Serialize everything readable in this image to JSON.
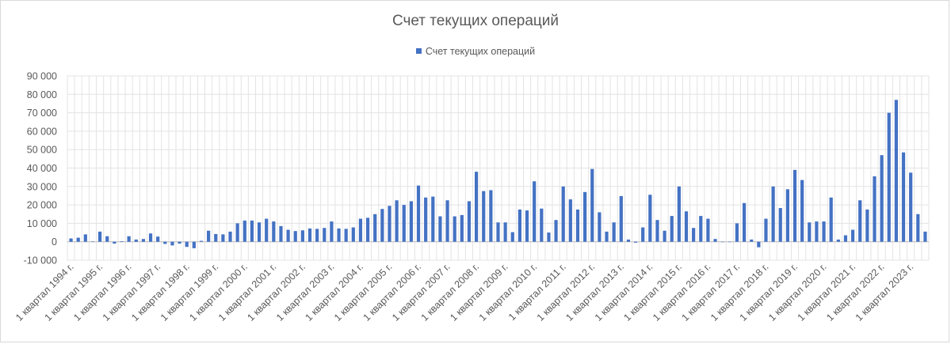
{
  "chart_data": {
    "type": "bar",
    "title": "Счет текущих операций",
    "xlabel": "",
    "ylabel": "",
    "legend": "top",
    "grid": true,
    "ylim": [
      -10000,
      90000
    ],
    "yticks": [
      "-10 000",
      "0",
      "10 000",
      "20 000",
      "30 000",
      "40 000",
      "50 000",
      "60 000",
      "70 000",
      "80 000",
      "90 000"
    ],
    "x_tick_labels": [
      "1 квартал 1994 г.",
      "1 квартал 1995 г.",
      "1 квартал 1996 г.",
      "1 квартал 1997 г.",
      "1 квартал 1998 г.",
      "1 квартал 1999 г.",
      "1 квартал 2000 г.",
      "1 квартал 2001 г.",
      "1 квартал 2002 г.",
      "1 квартал 2003 г.",
      "1 квартал 2004 г.",
      "1 квартал 2005 г.",
      "1 квартал 2006 г.",
      "1 квартал 2007 г.",
      "1 квартал 2008 г.",
      "1 квартал 2009 г.",
      "1 квартал 2010 г.",
      "1 квартал 2011 г.",
      "1 квартал 2012 г.",
      "1 квартал 2013 г.",
      "1 квартал 2014 г.",
      "1 квартал 2015 г.",
      "1 квартал 2016 г.",
      "1 квартал 2017 г.",
      "1 квартал 2018 г.",
      "1 квартал 2019 г.",
      "1 квартал 2020 г.",
      "1 квартал 2021 г.",
      "1 квартал 2022 г.",
      "1 квартал 2023 г."
    ],
    "series": [
      {
        "name": "Счет текущих операций",
        "color": "#4472c4",
        "values": [
          1800,
          2200,
          4000,
          200,
          5500,
          3000,
          -1000,
          300,
          3000,
          1200,
          1500,
          4500,
          2800,
          -1200,
          -2000,
          -1000,
          -2800,
          -3500,
          500,
          6000,
          4200,
          4000,
          5500,
          10000,
          11500,
          11500,
          10500,
          12500,
          11000,
          8500,
          6500,
          5800,
          6200,
          7200,
          7000,
          7500,
          11000,
          7200,
          7000,
          7800,
          12500,
          13000,
          15000,
          17800,
          19500,
          22500,
          20000,
          22000,
          30500,
          24000,
          24500,
          13800,
          22500,
          13800,
          14500,
          22000,
          38000,
          27500,
          28000,
          10500,
          10500,
          5200,
          17500,
          17000,
          32800,
          18000,
          5000,
          11800,
          30000,
          23000,
          17500,
          27000,
          39500,
          16000,
          5500,
          10500,
          24800,
          1200,
          -500,
          7800,
          25500,
          11800,
          6000,
          14000,
          30000,
          16500,
          7500,
          14000,
          12500,
          1500,
          0,
          0,
          10000,
          21000,
          1200,
          -3000,
          12500,
          30000,
          18300,
          28500,
          39000,
          33500,
          10500,
          11000,
          11000,
          24000,
          1200,
          3500,
          6500,
          22500,
          17500,
          35500,
          47000,
          70000,
          77000,
          48500,
          37500,
          15000,
          5500
        ]
      }
    ]
  }
}
